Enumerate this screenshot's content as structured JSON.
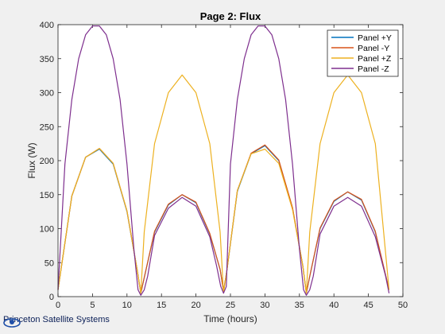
{
  "chart_data": {
    "type": "line",
    "title": "Page 2: Flux",
    "xlabel": "Time (hours)",
    "ylabel": "Flux (W)",
    "xlim": [
      0,
      50
    ],
    "ylim": [
      0,
      400
    ],
    "xticks": [
      0,
      5,
      10,
      15,
      20,
      25,
      30,
      35,
      40,
      45,
      50
    ],
    "yticks": [
      0,
      50,
      100,
      150,
      200,
      250,
      300,
      350,
      400
    ],
    "grid": false,
    "legend_position": "top-right",
    "series": [
      {
        "name": "Panel +Y",
        "color": "#0072bd",
        "x": [
          0,
          2,
          4,
          6,
          8,
          10,
          11.5,
          12,
          12.5,
          14,
          16,
          18,
          20,
          22,
          23.5,
          24,
          24.5,
          26,
          28,
          30,
          32,
          34,
          35.5,
          36,
          36.5,
          38,
          40,
          42,
          44,
          46,
          48
        ],
        "y": [
          10,
          148,
          205,
          217,
          195,
          125,
          38,
          5,
          28,
          95,
          135,
          150,
          138,
          92,
          40,
          8,
          40,
          155,
          210,
          222,
          200,
          130,
          45,
          5,
          30,
          100,
          140,
          154,
          142,
          95,
          10
        ]
      },
      {
        "name": "Panel -Y",
        "color": "#d95319",
        "x": [
          0,
          2,
          4,
          6,
          8,
          10,
          11.5,
          12,
          12.5,
          14,
          16,
          18,
          20,
          22,
          23.5,
          24,
          24.5,
          26,
          28,
          30,
          32,
          34,
          35.5,
          36,
          36.5,
          38,
          40,
          42,
          44,
          46,
          48
        ],
        "y": [
          10,
          148,
          205,
          218,
          196,
          126,
          38,
          5,
          28,
          96,
          136,
          150,
          139,
          93,
          40,
          8,
          40,
          156,
          211,
          223,
          201,
          131,
          45,
          5,
          30,
          101,
          141,
          154,
          143,
          96,
          10
        ]
      },
      {
        "name": "Panel +Z",
        "color": "#edb120",
        "x": [
          0,
          2,
          4,
          6,
          8,
          10,
          11.5,
          12,
          12.5,
          14,
          16,
          18,
          20,
          22,
          23.5,
          24,
          24.5,
          26,
          28,
          30,
          32,
          34,
          35.5,
          36,
          36.5,
          38,
          40,
          42,
          44,
          46,
          48
        ],
        "y": [
          10,
          148,
          205,
          218,
          196,
          126,
          38,
          5,
          95,
          225,
          300,
          326,
          300,
          225,
          95,
          5,
          40,
          156,
          210,
          217,
          196,
          128,
          45,
          5,
          95,
          225,
          300,
          326,
          300,
          225,
          10
        ]
      },
      {
        "name": "Panel -Z",
        "color": "#7e2f8e",
        "x": [
          0,
          1,
          2,
          3,
          4,
          5,
          6,
          7,
          8,
          9,
          10,
          11,
          11.6,
          12,
          12.5,
          13,
          14,
          16,
          18,
          20,
          22,
          23,
          23.6,
          24,
          24.4,
          25,
          26,
          27,
          28,
          29,
          30,
          31,
          32,
          33,
          34,
          35,
          35.6,
          36,
          36.5,
          37,
          38,
          40,
          42,
          44,
          46,
          47.5,
          48
        ],
        "y": [
          10,
          195,
          290,
          350,
          385,
          398,
          398,
          385,
          350,
          290,
          195,
          70,
          10,
          2,
          10,
          30,
          90,
          130,
          146,
          133,
          88,
          45,
          15,
          5,
          15,
          195,
          290,
          350,
          385,
          398,
          398,
          385,
          350,
          290,
          195,
          70,
          10,
          2,
          10,
          30,
          92,
          133,
          146,
          133,
          88,
          30,
          5
        ]
      }
    ]
  },
  "footer": {
    "company": "Princeton Satellite Systems"
  }
}
